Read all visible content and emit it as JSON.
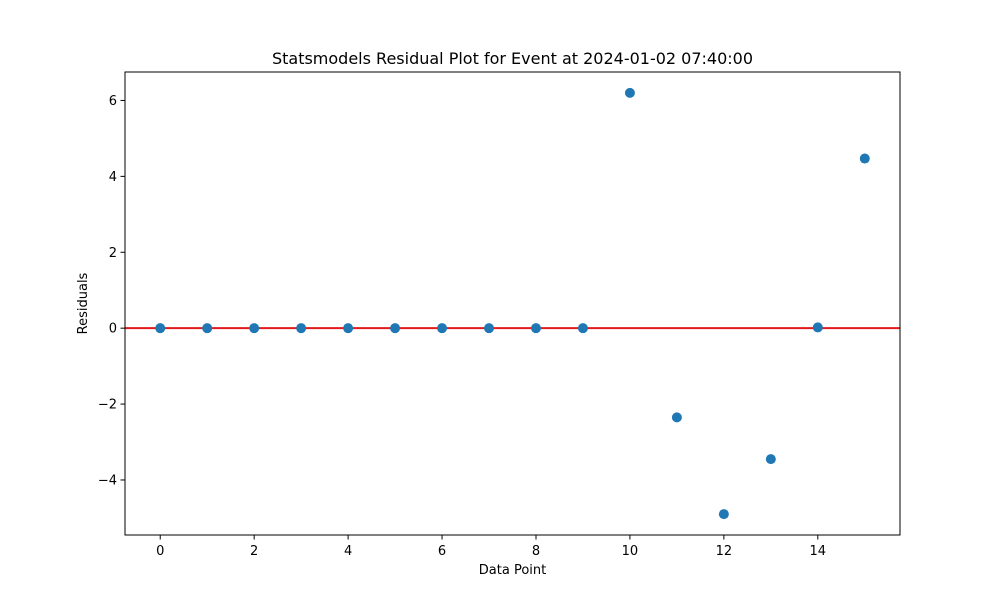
{
  "chart_data": {
    "type": "scatter",
    "title": "Statsmodels Residual Plot for Event at 2024-01-02 07:40:00",
    "xlabel": "Data Point",
    "ylabel": "Residuals",
    "xlim": [
      -0.75,
      15.75
    ],
    "ylim": [
      -5.45,
      6.75
    ],
    "x_ticks": [
      0,
      2,
      4,
      6,
      8,
      10,
      12,
      14
    ],
    "x_tick_labels": [
      "0",
      "2",
      "4",
      "6",
      "8",
      "10",
      "12",
      "14"
    ],
    "y_ticks": [
      -4,
      -2,
      0,
      2,
      4,
      6
    ],
    "y_tick_labels": [
      "−4",
      "−2",
      "0",
      "2",
      "4",
      "6"
    ],
    "grid": false,
    "reference_line": {
      "y": 0,
      "color": "#e31a1c"
    },
    "series": [
      {
        "color": "#1f77b4",
        "x": [
          0,
          1,
          2,
          3,
          4,
          5,
          6,
          7,
          8,
          9,
          10,
          11,
          12,
          13,
          14,
          15
        ],
        "y": [
          0,
          0,
          0,
          0,
          0,
          0,
          0,
          0,
          0,
          0,
          6.2,
          -2.35,
          -4.9,
          -3.45,
          0.02,
          4.47
        ]
      }
    ]
  }
}
